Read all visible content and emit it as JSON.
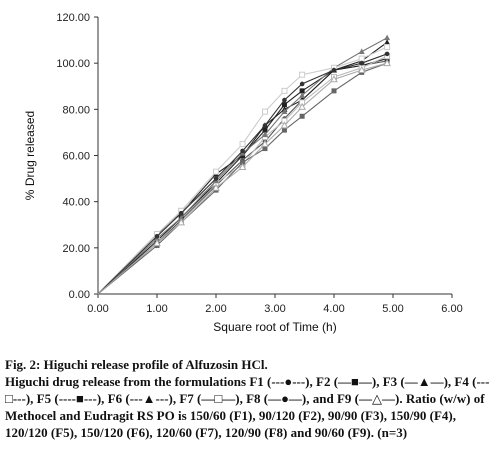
{
  "chart_data": {
    "type": "line",
    "xlabel": "Square root of Time (h)",
    "ylabel": "% Drug released",
    "xlim": [
      0,
      6
    ],
    "ylim": [
      0,
      120
    ],
    "xticks": [
      "0.00",
      "1.00",
      "2.00",
      "3.00",
      "4.00",
      "5.00",
      "6.00"
    ],
    "yticks": [
      "0.00",
      "20.00",
      "40.00",
      "60.00",
      "80.00",
      "100.00",
      "120.00"
    ],
    "grid": false,
    "x": [
      0,
      1,
      1.41,
      2,
      2.45,
      2.83,
      3.16,
      3.46,
      4,
      4.47,
      4.9
    ],
    "series": [
      {
        "name": "F1",
        "marker": "dot",
        "color": "#555555",
        "values": [
          0,
          22,
          32,
          47,
          58,
          66,
          76,
          84,
          97,
          99,
          101
        ]
      },
      {
        "name": "F2",
        "marker": "square",
        "color": "#222222",
        "values": [
          0,
          23,
          33,
          48,
          60,
          71,
          82,
          88,
          97,
          99,
          102
        ]
      },
      {
        "name": "F3",
        "marker": "triangle",
        "color": "#222222",
        "values": [
          0,
          26,
          35,
          52,
          60,
          73,
          80,
          84,
          97,
          101,
          109
        ]
      },
      {
        "name": "F4",
        "marker": "open-square",
        "color": "#bbbbbb",
        "values": [
          0,
          25,
          36,
          48,
          56,
          68,
          75,
          83,
          94,
          98,
          103
        ]
      },
      {
        "name": "F5",
        "marker": "square",
        "color": "#666666",
        "values": [
          0,
          21,
          31,
          45,
          57,
          63,
          71,
          77,
          88,
          96,
          100
        ]
      },
      {
        "name": "F6",
        "marker": "triangle",
        "color": "#777777",
        "values": [
          0,
          24,
          33,
          49,
          61,
          69,
          79,
          86,
          98,
          105,
          111
        ]
      },
      {
        "name": "F7",
        "marker": "open-square",
        "color": "#cccccc",
        "values": [
          0,
          26,
          36,
          53,
          65,
          79,
          88,
          95,
          98,
          102,
          107
        ]
      },
      {
        "name": "F8",
        "marker": "dot",
        "color": "#333333",
        "values": [
          0,
          25,
          35,
          50,
          62,
          73,
          84,
          91,
          97,
          100,
          104
        ]
      },
      {
        "name": "F9",
        "marker": "open-triangle",
        "color": "#aaaaaa",
        "values": [
          0,
          22,
          31,
          46,
          55,
          65,
          73,
          81,
          93,
          97,
          100
        ]
      }
    ]
  },
  "caption": {
    "fig_label": "Fig. 2:",
    "title": "Higuchi release profile of Alfuzosin HCl.",
    "body": "Higuchi drug release from the formulations F1 (---●---), F2 (—■—), F3 (—▲—), F4 (---□---), F5 (----■---), F6 (---▲---), F7 (—□—), F8 (—●—), and F9 (—△—). Ratio (w/w) of Methocel and Eudragit RS PO is 150/60 (F1), 90/120 (F2), 90/90 (F3), 150/90 (F4), 120/120 (F5), 150/120 (F6), 120/60 (F7), 120/90 (F8) and 90/60 (F9). (n=3)"
  }
}
